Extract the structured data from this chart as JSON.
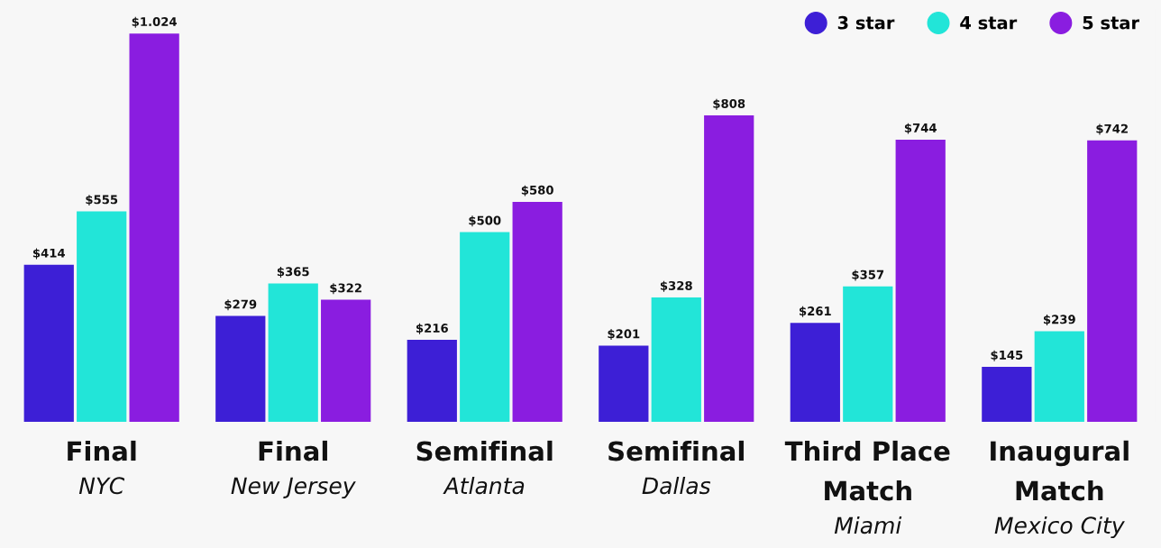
{
  "chart_data": {
    "type": "bar",
    "categories": [
      "Final\nNYC",
      "Final\nNew Jersey",
      "Semifinal\nAtlanta",
      "Semifinal\nDallas",
      "Third Place\nMatch\nMiami",
      "Inaugural\nMatch\nMexico City"
    ],
    "series": [
      {
        "name": "3 star",
        "color": "#3d1fd6",
        "values": [
          414,
          279,
          216,
          201,
          261,
          145
        ],
        "value_labels": [
          "$414",
          "$279",
          "$216",
          "$201",
          "$261",
          "$145"
        ]
      },
      {
        "name": "4 star",
        "color": "#22e5d8",
        "values": [
          555,
          365,
          500,
          328,
          357,
          239
        ],
        "value_labels": [
          "$555",
          "$365",
          "$500",
          "$328",
          "$357",
          "$239"
        ]
      },
      {
        "name": "5 star",
        "color": "#8a1de0",
        "values": [
          1024,
          322,
          580,
          808,
          744,
          742
        ],
        "value_labels": [
          "$1.024",
          "$322",
          "$580",
          "$808",
          "$744",
          "$742"
        ]
      }
    ],
    "legend": "top right"
  }
}
